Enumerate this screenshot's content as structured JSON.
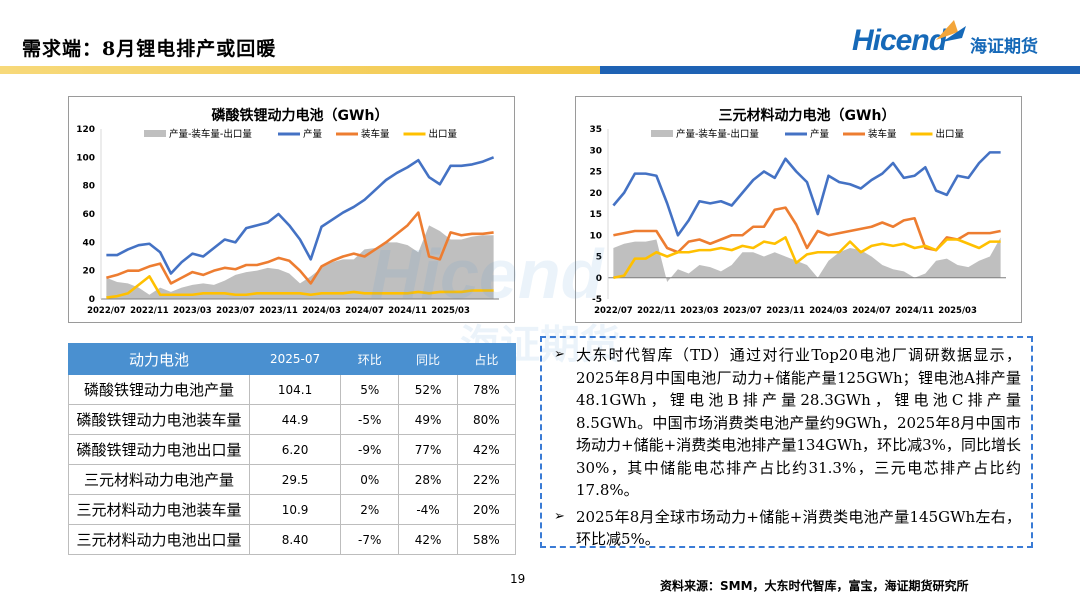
{
  "header": {
    "title": "需求端：8月锂电排产或回暖",
    "brand": "Hicend",
    "brand_cn": "海证期货",
    "band_colors": [
      "#f3c84a",
      "#1e62b4"
    ]
  },
  "watermark": {
    "text_en": "Hicend",
    "text_cn": "海证期货"
  },
  "chart_data": [
    {
      "type": "area+line",
      "title": "磷酸铁锂动力电池（GWh）",
      "x_ticks": [
        "2022/07",
        "2022/11",
        "2023/03",
        "2023/07",
        "2023/11",
        "2024/03",
        "2024/07",
        "2024/11",
        "2025/03"
      ],
      "ylim": [
        0,
        120
      ],
      "yticks": [
        0,
        20,
        40,
        60,
        80,
        100,
        120
      ],
      "x": [
        "2022/07",
        "2022/08",
        "2022/09",
        "2022/10",
        "2022/11",
        "2022/12",
        "2023/01",
        "2023/02",
        "2023/03",
        "2023/04",
        "2023/05",
        "2023/06",
        "2023/07",
        "2023/08",
        "2023/09",
        "2023/10",
        "2023/11",
        "2023/12",
        "2024/01",
        "2024/02",
        "2024/03",
        "2024/04",
        "2024/05",
        "2024/06",
        "2024/07",
        "2024/08",
        "2024/09",
        "2024/10",
        "2024/11",
        "2024/12",
        "2025/01",
        "2025/02",
        "2025/03",
        "2025/04",
        "2025/05",
        "2025/06",
        "2025/07"
      ],
      "series": [
        {
          "name": "产量-装车量-出口量",
          "kind": "area",
          "color": "#bfbfbf",
          "values": [
            15,
            12,
            11,
            8,
            3,
            8,
            5,
            8,
            10,
            11,
            10,
            13,
            17,
            19,
            20,
            22,
            21,
            18,
            11,
            16,
            22,
            26,
            28,
            28,
            35,
            36,
            40,
            40,
            38,
            33,
            52,
            48,
            42,
            42,
            44,
            45,
            45
          ]
        },
        {
          "name": "产量",
          "kind": "line",
          "color": "#4472c4",
          "values": [
            31,
            31,
            35,
            38,
            39,
            33,
            18,
            26,
            32,
            30,
            36,
            42,
            40,
            50,
            52,
            54,
            60,
            52,
            42,
            28,
            51,
            56,
            61,
            65,
            70,
            77,
            84,
            89,
            93,
            98,
            86,
            81,
            94,
            94,
            95,
            97,
            100
          ]
        },
        {
          "name": "装车量",
          "kind": "line",
          "color": "#ed7d31",
          "values": [
            15,
            17,
            20,
            20,
            23,
            25,
            11,
            15,
            19,
            17,
            20,
            22,
            21,
            24,
            24,
            26,
            29,
            27,
            20,
            11,
            23,
            27,
            30,
            32,
            30,
            35,
            40,
            46,
            52,
            61,
            30,
            28,
            47,
            45,
            46,
            46,
            47
          ]
        },
        {
          "name": "出口量",
          "kind": "line",
          "color": "#ffc000",
          "values": [
            1,
            2,
            4,
            10,
            16,
            3,
            3,
            3,
            3,
            4,
            4,
            4,
            3,
            3,
            4,
            4,
            4,
            4,
            4,
            3,
            4,
            4,
            4,
            5,
            4,
            4,
            4,
            4,
            4,
            5,
            4,
            5,
            5,
            5,
            6,
            6,
            6
          ]
        }
      ]
    },
    {
      "type": "area+line",
      "title": "三元材料动力电池（GWh）",
      "x_ticks": [
        "2022/07",
        "2022/11",
        "2023/03",
        "2023/07",
        "2023/11",
        "2024/03",
        "2024/07",
        "2024/11",
        "2025/03"
      ],
      "ylim": [
        -5,
        35
      ],
      "yticks": [
        -5,
        0,
        5,
        10,
        15,
        20,
        25,
        30,
        35
      ],
      "x": [
        "2022/07",
        "2022/08",
        "2022/09",
        "2022/10",
        "2022/11",
        "2022/12",
        "2023/01",
        "2023/02",
        "2023/03",
        "2023/04",
        "2023/05",
        "2023/06",
        "2023/07",
        "2023/08",
        "2023/09",
        "2023/10",
        "2023/11",
        "2023/12",
        "2024/01",
        "2024/02",
        "2024/03",
        "2024/04",
        "2024/05",
        "2024/06",
        "2024/07",
        "2024/08",
        "2024/09",
        "2024/10",
        "2024/11",
        "2024/12",
        "2025/01",
        "2025/02",
        "2025/03",
        "2025/04",
        "2025/05",
        "2025/06",
        "2025/07"
      ],
      "series": [
        {
          "name": "产量-装车量-出口量",
          "kind": "area",
          "color": "#bfbfbf",
          "values": [
            7,
            8,
            8.5,
            8.5,
            9,
            -1,
            2,
            1,
            3,
            2.5,
            1.5,
            3,
            6,
            6,
            5,
            6,
            5,
            4,
            3,
            0,
            4,
            6,
            7,
            6.5,
            5,
            3,
            2,
            1.5,
            0,
            1,
            4,
            4.5,
            3,
            2.5,
            4,
            5,
            9.5
          ]
        },
        {
          "name": "产量",
          "kind": "line",
          "color": "#4472c4",
          "values": [
            17,
            20,
            24.5,
            24.5,
            24,
            17.5,
            10,
            13.5,
            18,
            17.5,
            18,
            17,
            20,
            23,
            25,
            23.5,
            28,
            25,
            22.5,
            15,
            24,
            22.5,
            22,
            21,
            23,
            24.5,
            27,
            23.5,
            24,
            26,
            20.5,
            19.5,
            24,
            23.5,
            27,
            29.5,
            29.5
          ]
        },
        {
          "name": "装车量",
          "kind": "line",
          "color": "#ed7d31",
          "values": [
            10,
            10.5,
            11,
            11,
            11,
            7,
            6,
            8.5,
            9,
            8,
            9,
            10,
            10,
            12,
            12,
            16,
            16.5,
            12.5,
            7,
            11,
            10,
            10.5,
            11,
            11.5,
            12,
            13,
            12,
            13.5,
            14,
            7,
            6.5,
            9.5,
            9,
            10.5,
            10.5,
            10.5,
            11
          ]
        },
        {
          "name": "出口量",
          "kind": "line",
          "color": "#ffc000",
          "values": [
            0,
            0.5,
            4.5,
            4.5,
            6,
            5,
            6,
            6,
            6.5,
            6.5,
            7,
            6.5,
            7.5,
            7,
            8.5,
            8,
            9.5,
            3.5,
            5.5,
            6,
            6,
            6,
            8.5,
            6,
            7.5,
            8,
            7.5,
            8,
            7,
            7.5,
            6.5,
            9,
            9,
            8,
            7,
            8.5,
            8.5
          ]
        }
      ]
    }
  ],
  "table": {
    "headers": [
      "动力电池",
      "2025-07",
      "环比",
      "同比",
      "占比"
    ],
    "rows": [
      [
        "磷酸铁锂动力电池产量",
        "104.1",
        "5%",
        "52%",
        "78%"
      ],
      [
        "磷酸铁锂动力电池装车量",
        "44.9",
        "-5%",
        "49%",
        "80%"
      ],
      [
        "磷酸铁锂动力电池出口量",
        "6.20",
        "-9%",
        "77%",
        "42%"
      ],
      [
        "三元材料动力电池产量",
        "29.5",
        "0%",
        "28%",
        "22%"
      ],
      [
        "三元材料动力电池装车量",
        "10.9",
        "2%",
        "-4%",
        "20%"
      ],
      [
        "三元材料动力电池出口量",
        "8.40",
        "-7%",
        "42%",
        "58%"
      ]
    ]
  },
  "notes": {
    "bullet": "➢",
    "items": [
      "大东时代智库（TD）通过对行业Top20电池厂调研数据显示，2025年8月中国电池厂动力+储能产量125GWh；锂电池A排产量48.1GWh，锂电池B排产量28.3GWh，锂电池C排产量8.5GWh。中国市场消费类电池产量约9GWh，2025年8月中国市场动力+储能+消费类电池排产量134GWh，环比减3%，同比增长30%，其中储能电芯排产占比约31.3%，三元电芯排产占比约17.8%。",
      "2025年8月全球市场动力+储能+消费类电池产量145GWh左右，环比减5%。"
    ]
  },
  "footer": {
    "page": "19",
    "source": "资料来源：SMM，大东时代智库，富宝，海证期货研究所"
  }
}
